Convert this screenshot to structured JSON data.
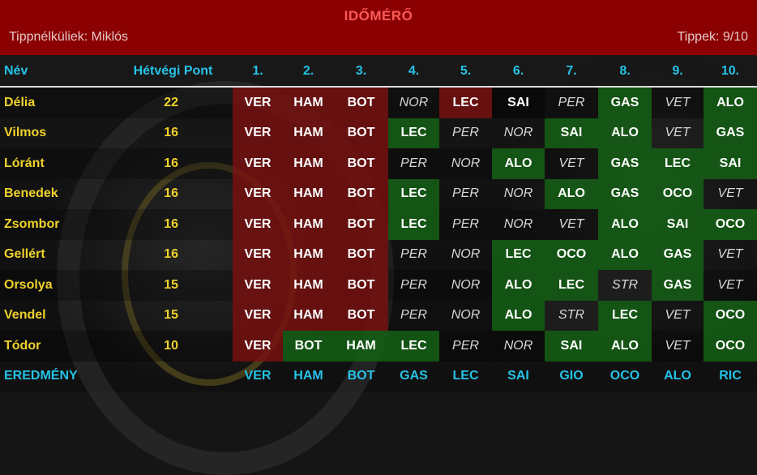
{
  "header": {
    "title": "IDŐMÉRŐ",
    "missing_label": "Tippnélküliek: Miklós",
    "tips_label": "Tippek: 9/10",
    "bg_color": "#8b0000"
  },
  "columns": {
    "name": "Név",
    "points": "Hétvégi Pont",
    "positions": [
      "1.",
      "2.",
      "3.",
      "4.",
      "5.",
      "6.",
      "7.",
      "8.",
      "9.",
      "10."
    ]
  },
  "rows": [
    {
      "name": "Délia",
      "points": "22",
      "picks": [
        {
          "d": "VER",
          "s": "red"
        },
        {
          "d": "HAM",
          "s": "red"
        },
        {
          "d": "BOT",
          "s": "red"
        },
        {
          "d": "NOR",
          "s": "none"
        },
        {
          "d": "LEC",
          "s": "red"
        },
        {
          "d": "SAI",
          "s": "black"
        },
        {
          "d": "PER",
          "s": "none"
        },
        {
          "d": "GAS",
          "s": "green"
        },
        {
          "d": "VET",
          "s": "none"
        },
        {
          "d": "ALO",
          "s": "green"
        }
      ]
    },
    {
      "name": "Vilmos",
      "points": "16",
      "picks": [
        {
          "d": "VER",
          "s": "red"
        },
        {
          "d": "HAM",
          "s": "red"
        },
        {
          "d": "BOT",
          "s": "red"
        },
        {
          "d": "LEC",
          "s": "green"
        },
        {
          "d": "PER",
          "s": "none"
        },
        {
          "d": "NOR",
          "s": "none"
        },
        {
          "d": "SAI",
          "s": "green"
        },
        {
          "d": "ALO",
          "s": "green"
        },
        {
          "d": "VET",
          "s": "dark"
        },
        {
          "d": "GAS",
          "s": "green"
        }
      ]
    },
    {
      "name": "Lóránt",
      "points": "16",
      "picks": [
        {
          "d": "VER",
          "s": "red"
        },
        {
          "d": "HAM",
          "s": "red"
        },
        {
          "d": "BOT",
          "s": "red"
        },
        {
          "d": "PER",
          "s": "none"
        },
        {
          "d": "NOR",
          "s": "none"
        },
        {
          "d": "ALO",
          "s": "green"
        },
        {
          "d": "VET",
          "s": "none"
        },
        {
          "d": "GAS",
          "s": "green"
        },
        {
          "d": "LEC",
          "s": "green"
        },
        {
          "d": "SAI",
          "s": "green"
        }
      ]
    },
    {
      "name": "Benedek",
      "points": "16",
      "picks": [
        {
          "d": "VER",
          "s": "red"
        },
        {
          "d": "HAM",
          "s": "red"
        },
        {
          "d": "BOT",
          "s": "red"
        },
        {
          "d": "LEC",
          "s": "green"
        },
        {
          "d": "PER",
          "s": "none"
        },
        {
          "d": "NOR",
          "s": "none"
        },
        {
          "d": "ALO",
          "s": "green"
        },
        {
          "d": "GAS",
          "s": "green"
        },
        {
          "d": "OCO",
          "s": "green"
        },
        {
          "d": "VET",
          "s": "none"
        }
      ]
    },
    {
      "name": "Zsombor",
      "points": "16",
      "picks": [
        {
          "d": "VER",
          "s": "red"
        },
        {
          "d": "HAM",
          "s": "red"
        },
        {
          "d": "BOT",
          "s": "red"
        },
        {
          "d": "LEC",
          "s": "green"
        },
        {
          "d": "PER",
          "s": "none"
        },
        {
          "d": "NOR",
          "s": "none"
        },
        {
          "d": "VET",
          "s": "none"
        },
        {
          "d": "ALO",
          "s": "green"
        },
        {
          "d": "SAI",
          "s": "green"
        },
        {
          "d": "OCO",
          "s": "green"
        }
      ]
    },
    {
      "name": "Gellért",
      "points": "16",
      "picks": [
        {
          "d": "VER",
          "s": "red"
        },
        {
          "d": "HAM",
          "s": "red"
        },
        {
          "d": "BOT",
          "s": "red"
        },
        {
          "d": "PER",
          "s": "none"
        },
        {
          "d": "NOR",
          "s": "none"
        },
        {
          "d": "LEC",
          "s": "green"
        },
        {
          "d": "OCO",
          "s": "green"
        },
        {
          "d": "ALO",
          "s": "green"
        },
        {
          "d": "GAS",
          "s": "green"
        },
        {
          "d": "VET",
          "s": "none"
        }
      ]
    },
    {
      "name": "Orsolya",
      "points": "15",
      "picks": [
        {
          "d": "VER",
          "s": "red"
        },
        {
          "d": "HAM",
          "s": "red"
        },
        {
          "d": "BOT",
          "s": "red"
        },
        {
          "d": "PER",
          "s": "none"
        },
        {
          "d": "NOR",
          "s": "none"
        },
        {
          "d": "ALO",
          "s": "green"
        },
        {
          "d": "LEC",
          "s": "green"
        },
        {
          "d": "STR",
          "s": "dark"
        },
        {
          "d": "GAS",
          "s": "green"
        },
        {
          "d": "VET",
          "s": "none"
        }
      ]
    },
    {
      "name": "Vendel",
      "points": "15",
      "picks": [
        {
          "d": "VER",
          "s": "red"
        },
        {
          "d": "HAM",
          "s": "red"
        },
        {
          "d": "BOT",
          "s": "red"
        },
        {
          "d": "PER",
          "s": "none"
        },
        {
          "d": "NOR",
          "s": "none"
        },
        {
          "d": "ALO",
          "s": "green"
        },
        {
          "d": "STR",
          "s": "dark"
        },
        {
          "d": "LEC",
          "s": "green"
        },
        {
          "d": "VET",
          "s": "none"
        },
        {
          "d": "OCO",
          "s": "green"
        }
      ]
    },
    {
      "name": "Tódor",
      "points": "10",
      "picks": [
        {
          "d": "VER",
          "s": "red"
        },
        {
          "d": "BOT",
          "s": "green"
        },
        {
          "d": "HAM",
          "s": "green"
        },
        {
          "d": "LEC",
          "s": "green"
        },
        {
          "d": "PER",
          "s": "none"
        },
        {
          "d": "NOR",
          "s": "none"
        },
        {
          "d": "SAI",
          "s": "green"
        },
        {
          "d": "ALO",
          "s": "green"
        },
        {
          "d": "VET",
          "s": "none"
        },
        {
          "d": "OCO",
          "s": "green"
        }
      ]
    }
  ],
  "result": {
    "label": "EREDMÉNY",
    "drivers": [
      "VER",
      "HAM",
      "BOT",
      "GAS",
      "LEC",
      "SAI",
      "GIO",
      "OCO",
      "ALO",
      "RIC"
    ]
  },
  "colors": {
    "accent_cyan": "#25c2e6",
    "name_yellow": "#f0d22a",
    "exact_red": "#780f0f",
    "partial_green": "#145f14"
  }
}
